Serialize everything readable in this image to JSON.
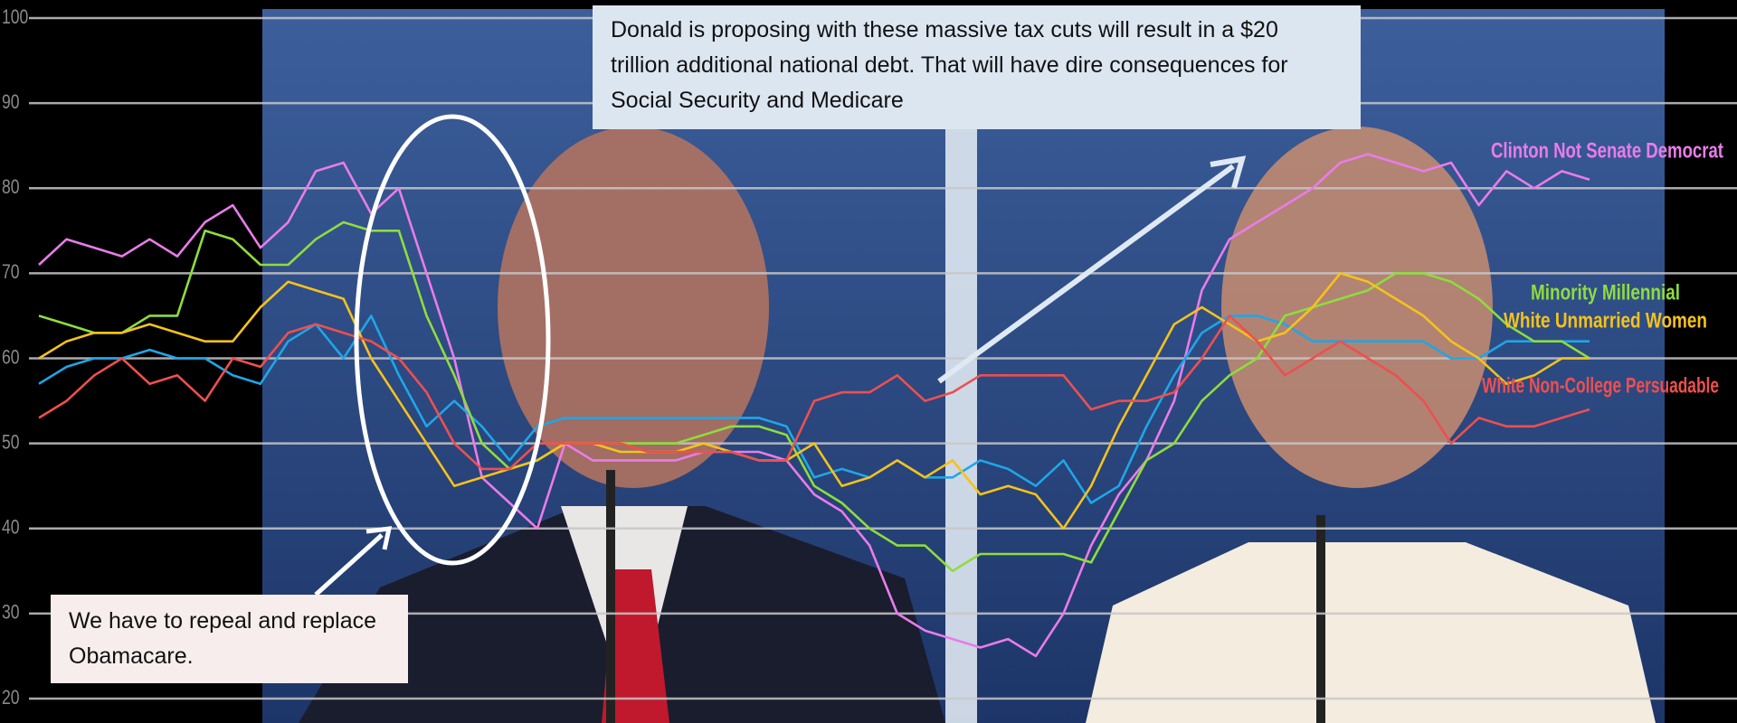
{
  "chart_data": {
    "type": "line",
    "ylim": [
      20,
      100
    ],
    "yticks": [
      20,
      30,
      40,
      50,
      60,
      70,
      80,
      90,
      100
    ],
    "grid": true,
    "series": [
      {
        "name": "Clinton Not Senate Democrat",
        "color": "#e97ce9",
        "values": [
          71,
          74,
          73,
          72,
          74,
          72,
          76,
          78,
          73,
          76,
          82,
          83,
          77,
          80,
          70,
          60,
          46,
          43,
          40,
          50,
          48,
          48,
          48,
          48,
          49,
          49,
          49,
          48,
          44,
          42,
          38,
          30,
          28,
          27,
          26,
          27,
          25,
          30,
          38,
          44,
          48,
          55,
          68,
          74,
          76,
          78,
          80,
          83,
          84,
          83,
          82,
          83,
          78,
          82,
          80,
          82,
          81
        ]
      },
      {
        "color": "#1fa6e6",
        "values": [
          57,
          59,
          60,
          60,
          61,
          60,
          60,
          58,
          57,
          62,
          64,
          60,
          65,
          58,
          52,
          55,
          52,
          48,
          52,
          53,
          53,
          53,
          53,
          53,
          53,
          53,
          53,
          52,
          46,
          47,
          46,
          48,
          46,
          46,
          48,
          47,
          45,
          48,
          43,
          45,
          52,
          58,
          63,
          65,
          65,
          64,
          62,
          62,
          62,
          62,
          62,
          60,
          60,
          62,
          62,
          62,
          62
        ]
      },
      {
        "name": "Minority Millennial",
        "color": "#8fdc3c",
        "values": [
          65,
          64,
          63,
          63,
          65,
          65,
          75,
          74,
          71,
          71,
          74,
          76,
          75,
          75,
          65,
          58,
          50,
          47,
          48,
          50,
          50,
          50,
          50,
          50,
          51,
          52,
          52,
          51,
          45,
          43,
          40,
          38,
          38,
          35,
          37,
          37,
          37,
          37,
          36,
          42,
          48,
          50,
          55,
          58,
          60,
          65,
          66,
          67,
          68,
          70,
          70,
          69,
          67,
          64,
          62,
          62,
          60
        ]
      },
      {
        "name": "White Unmarried Women",
        "color": "#f5c21b",
        "values": [
          60,
          62,
          63,
          63,
          64,
          63,
          62,
          62,
          66,
          69,
          68,
          67,
          60,
          55,
          50,
          45,
          46,
          47,
          48,
          50,
          50,
          49,
          49,
          49,
          50,
          49,
          48,
          48,
          50,
          45,
          46,
          48,
          46,
          48,
          44,
          45,
          44,
          40,
          45,
          52,
          58,
          64,
          66,
          64,
          62,
          63,
          66,
          70,
          69,
          67,
          65,
          62,
          60,
          57,
          58,
          60,
          60
        ]
      },
      {
        "name": "White Non-College Persuadable",
        "color": "#ee4f4f",
        "values": [
          53,
          55,
          58,
          60,
          57,
          58,
          55,
          60,
          59,
          63,
          64,
          63,
          62,
          60,
          56,
          50,
          47,
          47,
          50,
          50,
          50,
          50,
          49,
          49,
          49,
          49,
          48,
          48,
          55,
          56,
          56,
          58,
          55,
          56,
          58,
          58,
          58,
          58,
          54,
          55,
          55,
          56,
          60,
          65,
          62,
          58,
          60,
          62,
          60,
          58,
          55,
          50,
          53,
          52,
          52,
          53,
          54
        ]
      }
    ],
    "annotations": [
      {
        "text": "Donald is proposing with these massive tax cuts will result in a $20 trillion additional national debt. That will have dire consequences for Social Security and Medicare"
      },
      {
        "text": "We have to repeal and replace Obamacare."
      }
    ]
  }
}
